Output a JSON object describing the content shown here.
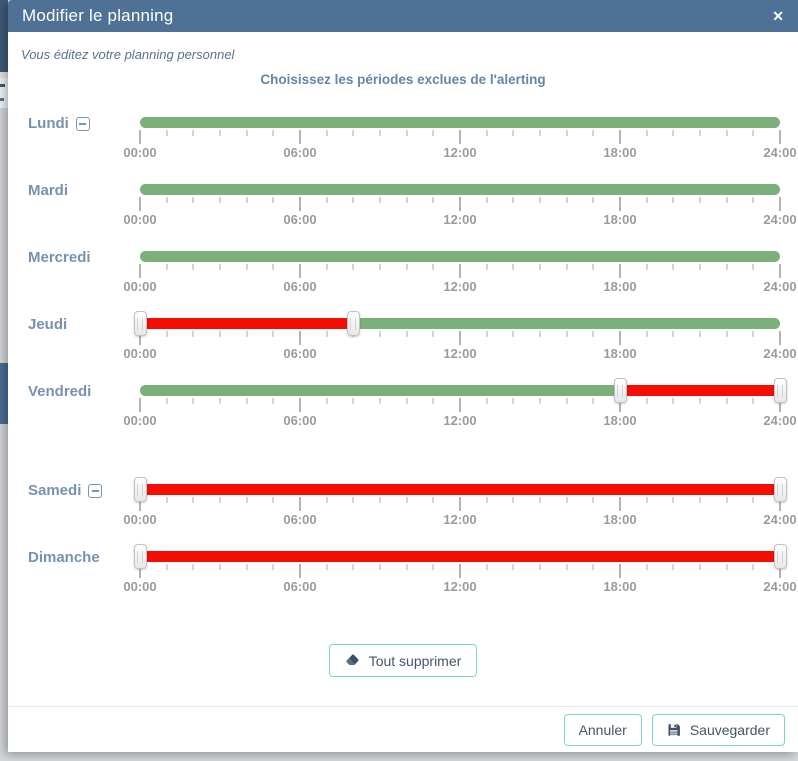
{
  "modal": {
    "title": "Modifier le planning",
    "close_icon": "✕",
    "subtitle": "Vous éditez votre planning personnel",
    "heading": "Choisissez les périodes exclues de l'alerting"
  },
  "slider": {
    "min_hour": 0,
    "max_hour": 24,
    "minor_tick_every_hours": 1,
    "major_tick_hours": [
      0,
      6,
      12,
      18,
      24
    ],
    "tick_labels": [
      {
        "hour": 0,
        "text": "00:00"
      },
      {
        "hour": 6,
        "text": "06:00"
      },
      {
        "hour": 12,
        "text": "12:00"
      },
      {
        "hour": 18,
        "text": "18:00"
      },
      {
        "hour": 24,
        "text": "24:00"
      }
    ]
  },
  "days": [
    {
      "label": "Lundi",
      "removable": true,
      "gap_before": false,
      "segments": [
        {
          "from": 0,
          "to": 24,
          "state": "included"
        }
      ],
      "handles": []
    },
    {
      "label": "Mardi",
      "removable": false,
      "gap_before": false,
      "segments": [
        {
          "from": 0,
          "to": 24,
          "state": "included"
        }
      ],
      "handles": []
    },
    {
      "label": "Mercredi",
      "removable": false,
      "gap_before": false,
      "segments": [
        {
          "from": 0,
          "to": 24,
          "state": "included"
        }
      ],
      "handles": []
    },
    {
      "label": "Jeudi",
      "removable": false,
      "gap_before": false,
      "segments": [
        {
          "from": 0,
          "to": 8,
          "state": "excluded"
        },
        {
          "from": 8,
          "to": 24,
          "state": "included"
        }
      ],
      "handles": [
        0,
        8
      ]
    },
    {
      "label": "Vendredi",
      "removable": false,
      "gap_before": false,
      "segments": [
        {
          "from": 0,
          "to": 18,
          "state": "included"
        },
        {
          "from": 18,
          "to": 24,
          "state": "excluded"
        }
      ],
      "handles": [
        18,
        24
      ]
    },
    {
      "label": "Samedi",
      "removable": true,
      "gap_before": true,
      "segments": [
        {
          "from": 0,
          "to": 24,
          "state": "excluded"
        }
      ],
      "handles": [
        0,
        24
      ]
    },
    {
      "label": "Dimanche",
      "removable": false,
      "gap_before": false,
      "segments": [
        {
          "from": 0,
          "to": 24,
          "state": "excluded"
        }
      ],
      "handles": [
        0,
        24
      ]
    }
  ],
  "actions": {
    "clear_all_label": "Tout supprimer",
    "cancel_label": "Annuler",
    "save_label": "Sauvegarder"
  },
  "colors": {
    "header_bg": "#4e7195",
    "included_green": "#7cb07a",
    "excluded_red": "#f40d00",
    "accent_teal": "#79d6cf",
    "day_label_blue": "#7692ae",
    "button_text": "#42566b",
    "tick_label_gray": "#9b9b9b"
  }
}
